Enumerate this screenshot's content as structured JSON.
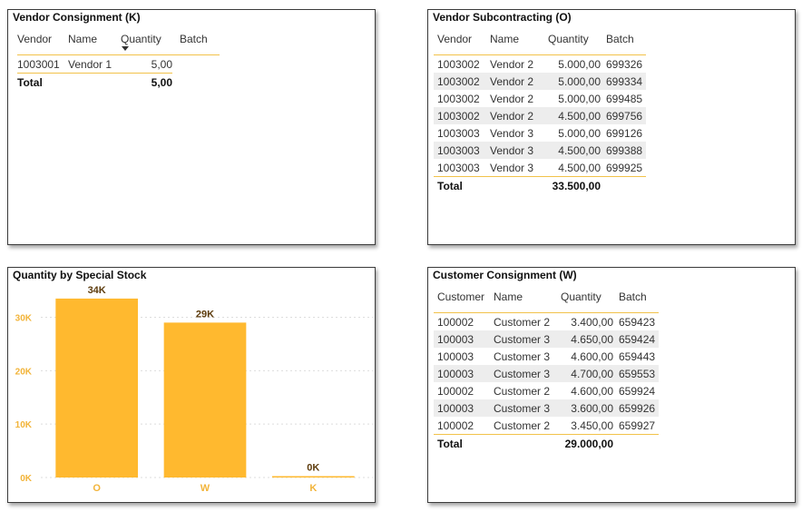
{
  "vendor_consignment": {
    "title": "Vendor Consignment (K)",
    "columns": [
      "Vendor",
      "Name",
      "Quantity",
      "Batch"
    ],
    "rows": [
      {
        "vendor": "1003001",
        "name": "Vendor 1",
        "quantity": "5,00",
        "batch": ""
      }
    ],
    "total_label": "Total",
    "total_quantity": "5,00"
  },
  "vendor_subcontracting": {
    "title": "Vendor Subcontracting (O)",
    "columns": [
      "Vendor",
      "Name",
      "Quantity",
      "Batch"
    ],
    "rows": [
      {
        "vendor": "1003002",
        "name": "Vendor 2",
        "quantity": "5.000,00",
        "batch": "699326"
      },
      {
        "vendor": "1003002",
        "name": "Vendor 2",
        "quantity": "5.000,00",
        "batch": "699334"
      },
      {
        "vendor": "1003002",
        "name": "Vendor 2",
        "quantity": "5.000,00",
        "batch": "699485"
      },
      {
        "vendor": "1003002",
        "name": "Vendor 2",
        "quantity": "4.500,00",
        "batch": "699756"
      },
      {
        "vendor": "1003003",
        "name": "Vendor 3",
        "quantity": "5.000,00",
        "batch": "699126"
      },
      {
        "vendor": "1003003",
        "name": "Vendor 3",
        "quantity": "4.500,00",
        "batch": "699388"
      },
      {
        "vendor": "1003003",
        "name": "Vendor 3",
        "quantity": "4.500,00",
        "batch": "699925"
      }
    ],
    "total_label": "Total",
    "total_quantity": "33.500,00"
  },
  "quantity_chart": {
    "title": "Quantity by Special Stock"
  },
  "customer_consignment": {
    "title": "Customer Consignment (W)",
    "columns": [
      "Customer",
      "Name",
      "Quantity",
      "Batch"
    ],
    "rows": [
      {
        "customer": "100002",
        "name": "Customer 2",
        "quantity": "3.400,00",
        "batch": "659423"
      },
      {
        "customer": "100003",
        "name": "Customer 3",
        "quantity": "4.650,00",
        "batch": "659424"
      },
      {
        "customer": "100003",
        "name": "Customer 3",
        "quantity": "4.600,00",
        "batch": "659443"
      },
      {
        "customer": "100003",
        "name": "Customer 3",
        "quantity": "4.700,00",
        "batch": "659553"
      },
      {
        "customer": "100002",
        "name": "Customer 2",
        "quantity": "4.600,00",
        "batch": "659924"
      },
      {
        "customer": "100003",
        "name": "Customer 3",
        "quantity": "3.600,00",
        "batch": "659926"
      },
      {
        "customer": "100002",
        "name": "Customer 2",
        "quantity": "3.450,00",
        "batch": "659927"
      }
    ],
    "total_label": "Total",
    "total_quantity": "29.000,00"
  },
  "chart_data": {
    "type": "bar",
    "title": "Quantity by Special Stock",
    "categories": [
      "O",
      "W",
      "K"
    ],
    "values": [
      33500,
      29000,
      5
    ],
    "data_labels": [
      "34K",
      "29K",
      "0K"
    ],
    "yticks": [
      0,
      10000,
      20000,
      30000
    ],
    "ytick_labels": [
      "0K",
      "10K",
      "20K",
      "30K"
    ],
    "ylim": [
      0,
      34500
    ],
    "grid": true,
    "bar_color": "#FFB92F",
    "axis_label_color": "#F2B43A",
    "data_label_color": "#5c3b0c"
  },
  "colors": {
    "accent": "#F2C24A",
    "bar": "#FFB92F",
    "row_band": "#EDEDED"
  }
}
